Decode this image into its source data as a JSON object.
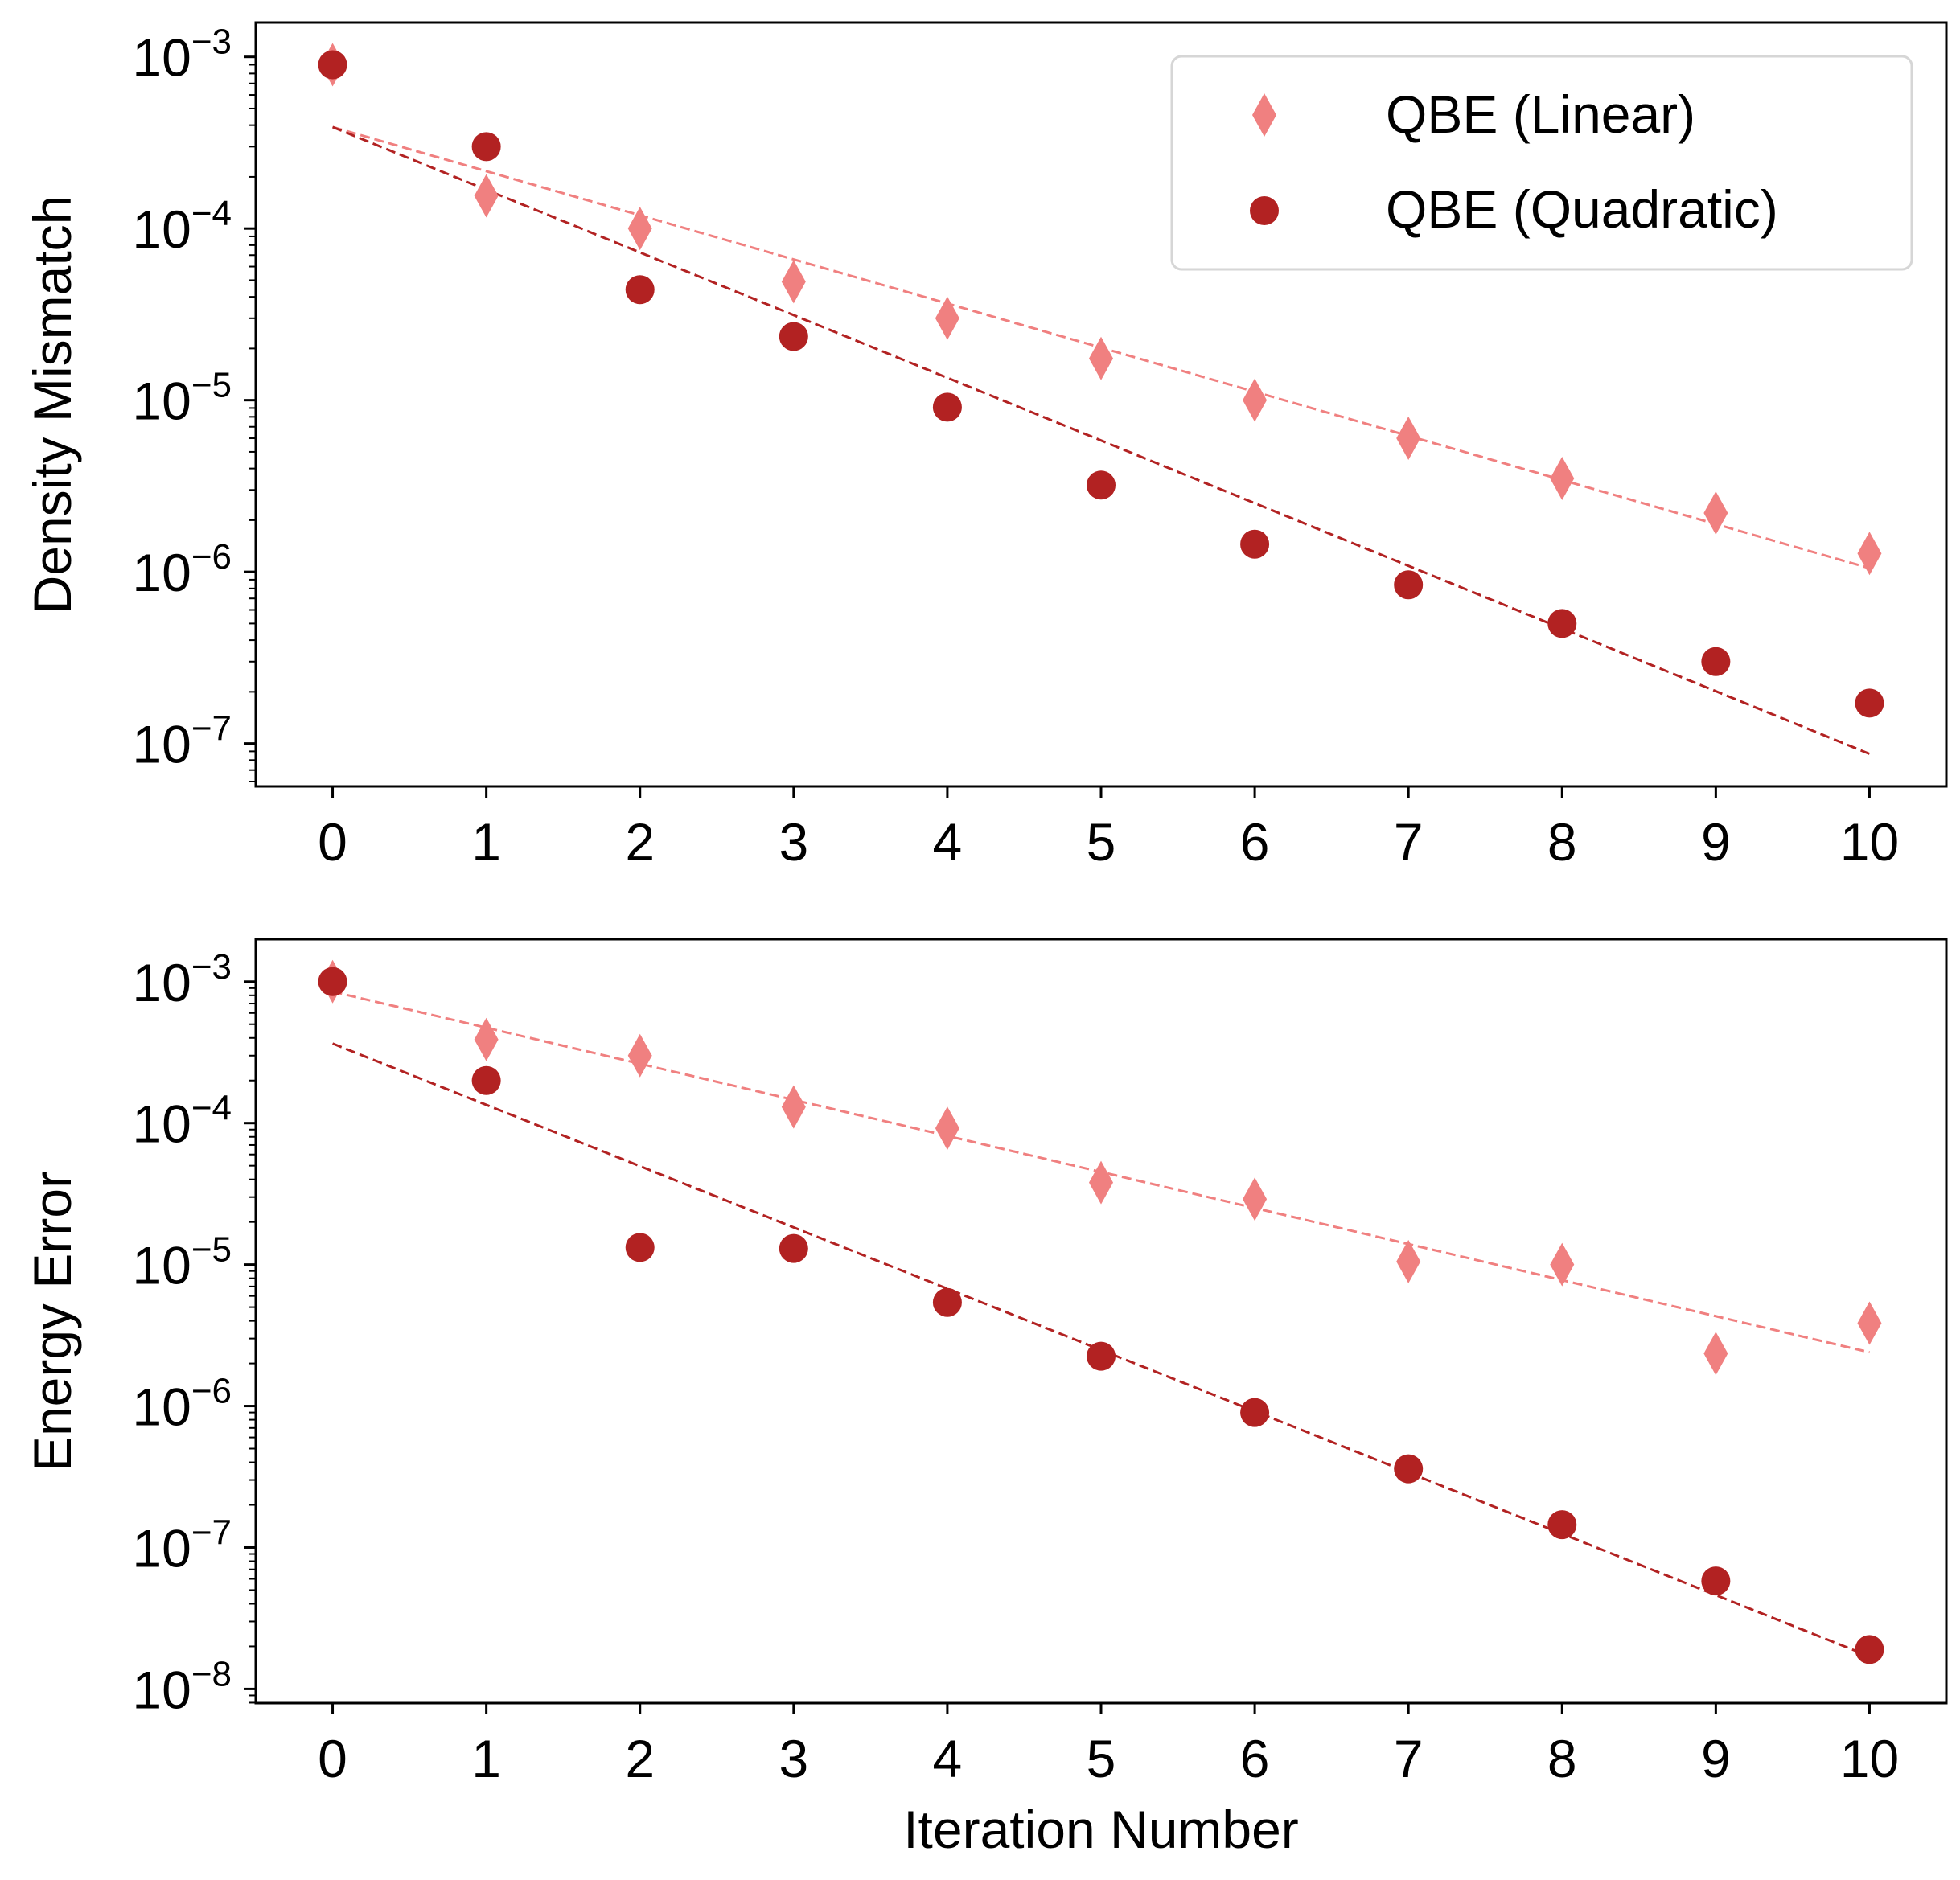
{
  "chart_data": [
    {
      "type": "scatter",
      "scale_y": "log",
      "title": "",
      "xlabel": "",
      "ylabel": "Density Mismatch",
      "xlim": [
        -0.5,
        10.5
      ],
      "ylim_log10": [
        -7.25,
        -2.8
      ],
      "x_ticks": [
        "0",
        "1",
        "2",
        "3",
        "4",
        "5",
        "6",
        "7",
        "8",
        "9",
        "10"
      ],
      "y_ticks": [
        {
          "base": "10",
          "exp": "−3",
          "log10": -3
        },
        {
          "base": "10",
          "exp": "−4",
          "log10": -4
        },
        {
          "base": "10",
          "exp": "−5",
          "log10": -5
        },
        {
          "base": "10",
          "exp": "−6",
          "log10": -6
        },
        {
          "base": "10",
          "exp": "−7",
          "log10": -7
        }
      ],
      "legend": {
        "position": "top-right"
      },
      "series": [
        {
          "name": "QBE (Linear)",
          "marker": "diamond",
          "color": "#F08080",
          "x": [
            0,
            1,
            2,
            3,
            4,
            5,
            6,
            7,
            8,
            9,
            10
          ],
          "y": [
            0.0009,
            0.000155,
            0.0001,
            4.9e-05,
            3e-05,
            1.75e-05,
            1e-05,
            6e-06,
            3.5e-06,
            2.2e-06,
            1.28e-06
          ],
          "fit": {
            "x": [
              0,
              10
            ],
            "y": [
              0.00039,
              1.05e-06
            ]
          }
        },
        {
          "name": "QBE (Quadratic)",
          "marker": "circle",
          "color": "#B22222",
          "x": [
            0,
            1,
            2,
            3,
            4,
            5,
            6,
            7,
            8,
            9,
            10
          ],
          "y": [
            0.0009,
            0.0003,
            4.4e-05,
            2.35e-05,
            9.1e-06,
            3.2e-06,
            1.45e-06,
            8.4e-07,
            5e-07,
            3e-07,
            1.72e-07
          ],
          "fit": {
            "x": [
              0,
              10
            ],
            "y": [
              0.00039,
              8.7e-08
            ]
          }
        }
      ]
    },
    {
      "type": "scatter",
      "scale_y": "log",
      "title": "",
      "xlabel": "Iteration Number",
      "ylabel": "Energy Error",
      "xlim": [
        -0.5,
        10.5
      ],
      "ylim_log10": [
        -8.1,
        -2.7
      ],
      "x_ticks": [
        "0",
        "1",
        "2",
        "3",
        "4",
        "5",
        "6",
        "7",
        "8",
        "9",
        "10"
      ],
      "y_ticks": [
        {
          "base": "10",
          "exp": "−3",
          "log10": -3
        },
        {
          "base": "10",
          "exp": "−4",
          "log10": -4
        },
        {
          "base": "10",
          "exp": "−5",
          "log10": -5
        },
        {
          "base": "10",
          "exp": "−6",
          "log10": -6
        },
        {
          "base": "10",
          "exp": "−7",
          "log10": -7
        },
        {
          "base": "10",
          "exp": "−8",
          "log10": -8
        }
      ],
      "series": [
        {
          "name": "QBE (Linear)",
          "marker": "diamond",
          "color": "#F08080",
          "x": [
            0,
            1,
            2,
            3,
            4,
            5,
            6,
            7,
            8,
            9,
            10
          ],
          "y": [
            0.001,
            0.00039,
            0.0003,
            0.00013,
            9.2e-05,
            3.8e-05,
            2.9e-05,
            1.05e-05,
            1e-05,
            2.35e-06,
            3.85e-06
          ],
          "fit": {
            "x": [
              0,
              10
            ],
            "y": [
              0.00085,
              2.4e-06
            ]
          }
        },
        {
          "name": "QBE (Quadratic)",
          "marker": "circle",
          "color": "#B22222",
          "x": [
            0,
            1,
            2,
            3,
            4,
            5,
            6,
            7,
            8,
            9,
            10
          ],
          "y": [
            0.001,
            0.0002,
            1.32e-05,
            1.3e-05,
            5.4e-06,
            2.25e-06,
            9e-07,
            3.6e-07,
            1.45e-07,
            5.8e-08,
            1.9e-08
          ],
          "fit": {
            "x": [
              0,
              10
            ],
            "y": [
              0.000365,
              1.7e-08
            ]
          }
        }
      ]
    }
  ]
}
